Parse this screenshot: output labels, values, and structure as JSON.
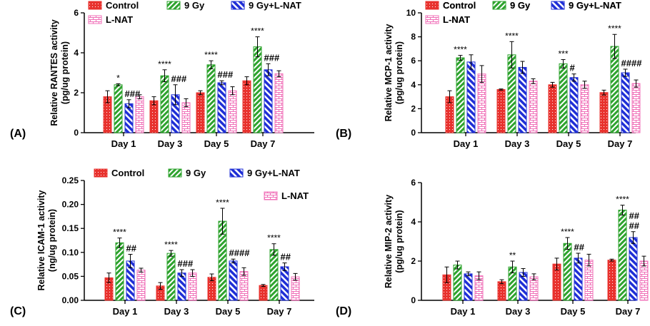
{
  "colors": {
    "control": "#e8322e",
    "gy9": "#2ea32e",
    "gynat": "#1f2fd6",
    "lnat": "#f070b8"
  },
  "legend_labels": [
    "Control",
    "9 Gy",
    "9 Gy+L-NAT",
    "L-NAT"
  ],
  "chart_data": [
    {
      "type": "bar",
      "panel_label": "(A)",
      "ylabel": [
        "Relative RANTES activity",
        "(pg/ug protein)"
      ],
      "categories": [
        "Day 1",
        "Day 3",
        "Day 5",
        "Day 7"
      ],
      "ylim": [
        0,
        6
      ],
      "yticks": [
        0,
        2,
        4,
        6
      ],
      "legend_layout": "A",
      "series": [
        {
          "name": "Control",
          "values": [
            1.8,
            1.6,
            2.0,
            2.6
          ],
          "errors": [
            0.3,
            0.2,
            0.1,
            0.2
          ]
        },
        {
          "name": "9 Gy",
          "values": [
            2.4,
            2.85,
            3.4,
            4.3
          ],
          "errors": [
            0.05,
            0.3,
            0.2,
            0.5
          ]
        },
        {
          "name": "9 Gy+L-NAT",
          "values": [
            1.45,
            1.9,
            2.5,
            3.15
          ],
          "errors": [
            0.2,
            0.5,
            0.1,
            0.3
          ]
        },
        {
          "name": "L-NAT",
          "values": [
            1.8,
            1.5,
            2.1,
            2.95
          ],
          "errors": [
            0.1,
            0.2,
            0.2,
            0.15
          ]
        }
      ],
      "annotations": [
        {
          "category": 0,
          "series": 1,
          "text": "*"
        },
        {
          "category": 0,
          "series": 2,
          "text": "###"
        },
        {
          "category": 1,
          "series": 1,
          "text": "****"
        },
        {
          "category": 1,
          "series": 2,
          "text": "###"
        },
        {
          "category": 2,
          "series": 1,
          "text": "****"
        },
        {
          "category": 2,
          "series": 2,
          "text": "###"
        },
        {
          "category": 3,
          "series": 1,
          "text": "****"
        },
        {
          "category": 3,
          "series": 2,
          "text": "###"
        }
      ]
    },
    {
      "type": "bar",
      "panel_label": "(B)",
      "ylabel": [
        "Relative MCP-1 activity",
        "(pg/ug protein)"
      ],
      "categories": [
        "Day 1",
        "Day 3",
        "Day 5",
        "Day 7"
      ],
      "ylim": [
        0,
        10
      ],
      "yticks": [
        0,
        2,
        4,
        6,
        8,
        10
      ],
      "legend_layout": "B",
      "series": [
        {
          "name": "Control",
          "values": [
            3.0,
            3.6,
            4.0,
            3.35
          ],
          "errors": [
            0.5,
            0.05,
            0.2,
            0.2
          ]
        },
        {
          "name": "9 Gy",
          "values": [
            6.25,
            6.5,
            5.75,
            7.2
          ],
          "errors": [
            0.2,
            1.1,
            0.35,
            1.0
          ]
        },
        {
          "name": "9 Gy+L-NAT",
          "values": [
            5.9,
            5.45,
            4.6,
            5.0
          ],
          "errors": [
            0.6,
            0.5,
            0.3,
            0.3
          ]
        },
        {
          "name": "L-NAT",
          "values": [
            4.9,
            4.3,
            4.0,
            4.1
          ],
          "errors": [
            0.7,
            0.2,
            0.3,
            0.3
          ]
        }
      ],
      "annotations": [
        {
          "category": 0,
          "series": 1,
          "text": "****"
        },
        {
          "category": 1,
          "series": 1,
          "text": "****"
        },
        {
          "category": 2,
          "series": 1,
          "text": "***"
        },
        {
          "category": 2,
          "series": 2,
          "text": "#"
        },
        {
          "category": 3,
          "series": 1,
          "text": "****"
        },
        {
          "category": 3,
          "series": 2,
          "text": "####"
        }
      ]
    },
    {
      "type": "bar",
      "panel_label": "(C)",
      "ylabel": [
        "Relative ICAM-1 activity",
        "(ng/ug protein)"
      ],
      "categories": [
        "Day 1",
        "Day 3",
        "Day 5",
        "Day 7"
      ],
      "ylim": [
        0,
        0.25
      ],
      "yticks": [
        0.0,
        0.05,
        0.1,
        0.15,
        0.2,
        0.25
      ],
      "ytick_labels": [
        "0.00",
        "0.05",
        "0.10",
        "0.15",
        "0.20",
        "0.25"
      ],
      "legend_layout": "C",
      "series": [
        {
          "name": "Control",
          "values": [
            0.047,
            0.03,
            0.048,
            0.031
          ],
          "errors": [
            0.01,
            0.007,
            0.007,
            0.002
          ]
        },
        {
          "name": "9 Gy",
          "values": [
            0.12,
            0.098,
            0.165,
            0.106
          ],
          "errors": [
            0.01,
            0.006,
            0.027,
            0.012
          ]
        },
        {
          "name": "9 Gy+L-NAT",
          "values": [
            0.082,
            0.057,
            0.082,
            0.07
          ],
          "errors": [
            0.014,
            0.007,
            0.004,
            0.008
          ]
        },
        {
          "name": "L-NAT",
          "values": [
            0.063,
            0.057,
            0.06,
            0.049
          ],
          "errors": [
            0.004,
            0.007,
            0.008,
            0.007
          ]
        }
      ],
      "annotations": [
        {
          "category": 0,
          "series": 1,
          "text": "****"
        },
        {
          "category": 0,
          "series": 2,
          "text": "##"
        },
        {
          "category": 1,
          "series": 1,
          "text": "****"
        },
        {
          "category": 1,
          "series": 2,
          "text": "###"
        },
        {
          "category": 2,
          "series": 1,
          "text": "****"
        },
        {
          "category": 2,
          "series": 2,
          "text": "####"
        },
        {
          "category": 3,
          "series": 1,
          "text": "****"
        },
        {
          "category": 3,
          "series": 2,
          "text": "##"
        }
      ]
    },
    {
      "type": "bar",
      "panel_label": "(D)",
      "ylabel": [
        "Relative MIP-2 activity",
        "(pg/ug protein)"
      ],
      "categories": [
        "Day 1",
        "Day 3",
        "Day 5",
        "Day 7"
      ],
      "ylim": [
        0,
        6
      ],
      "yticks": [
        0,
        2,
        4,
        6
      ],
      "legend_layout": "B",
      "series": [
        {
          "name": "Control",
          "values": [
            1.3,
            0.95,
            1.85,
            2.05
          ],
          "errors": [
            0.4,
            0.1,
            0.3,
            0.05
          ]
        },
        {
          "name": "9 Gy",
          "values": [
            1.8,
            1.7,
            2.9,
            4.6
          ],
          "errors": [
            0.2,
            0.3,
            0.3,
            0.25
          ]
        },
        {
          "name": "9 Gy+L-NAT",
          "values": [
            1.35,
            1.42,
            2.15,
            3.2
          ],
          "errors": [
            0.1,
            0.2,
            0.25,
            0.3
          ]
        },
        {
          "name": "L-NAT",
          "values": [
            1.25,
            1.2,
            2.05,
            2.0
          ],
          "errors": [
            0.2,
            0.15,
            0.3,
            0.25
          ]
        }
      ],
      "annotations": [
        {
          "category": 1,
          "series": 1,
          "text": "**"
        },
        {
          "category": 2,
          "series": 1,
          "text": "****"
        },
        {
          "category": 2,
          "series": 2,
          "text": "##"
        },
        {
          "category": 3,
          "series": 1,
          "text": "****"
        },
        {
          "category": 3,
          "series": 2,
          "text": "##"
        },
        {
          "category": 3,
          "series": 2,
          "text": "##"
        }
      ]
    }
  ]
}
